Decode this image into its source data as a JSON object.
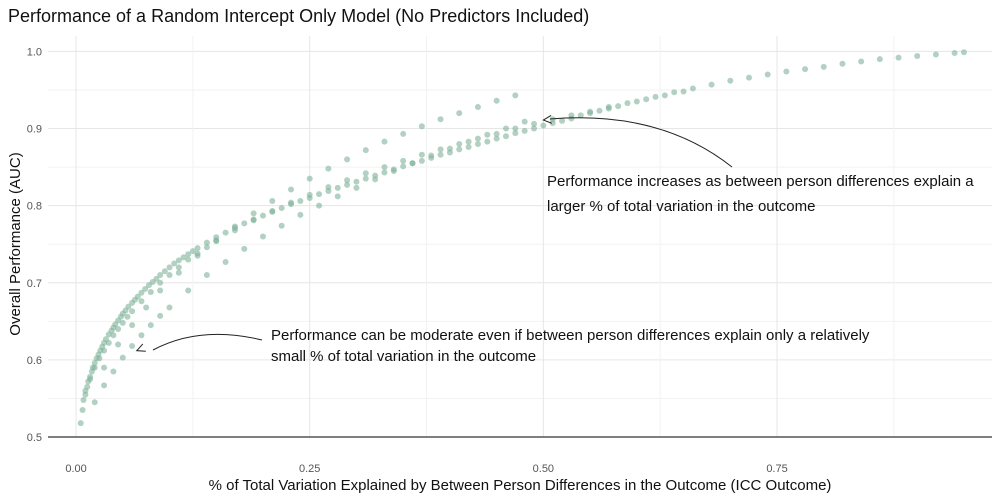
{
  "chart_data": {
    "type": "scatter",
    "title": "Performance of a Random Intercept Only Model (No Predictors Included)",
    "xlabel": "% of Total Variation Explained by Between Person Differences in the Outcome (ICC Outcome)",
    "ylabel": "Overall Performance (AUC)",
    "xlim": [
      -0.03,
      0.98
    ],
    "ylim": [
      0.5,
      1.02
    ],
    "x_ticks": [
      0.0,
      0.25,
      0.5,
      0.75
    ],
    "x_tick_labels": [
      "0.00",
      "0.25",
      "0.50",
      "0.75"
    ],
    "y_ticks": [
      0.5,
      0.6,
      0.7,
      0.8,
      0.9,
      1.0
    ],
    "y_tick_labels": [
      "0.5",
      "0.6",
      "0.7",
      "0.8",
      "0.9",
      "1.0"
    ],
    "grid": true,
    "legend": "none",
    "point_color": "#7fb39a",
    "reference_line_y": 0.5,
    "series": [
      {
        "x": [
          0.005,
          0.007,
          0.008,
          0.01,
          0.012,
          0.013,
          0.015,
          0.017,
          0.018,
          0.02,
          0.022,
          0.024,
          0.026,
          0.028,
          0.03,
          0.032,
          0.035,
          0.038,
          0.04,
          0.042,
          0.045,
          0.048,
          0.05,
          0.053,
          0.056,
          0.06,
          0.063,
          0.066,
          0.07,
          0.074,
          0.078,
          0.082,
          0.086,
          0.09,
          0.095,
          0.1,
          0.105,
          0.11,
          0.115,
          0.12,
          0.125,
          0.13,
          0.14,
          0.15,
          0.16,
          0.17,
          0.18,
          0.19,
          0.2,
          0.21,
          0.22,
          0.23,
          0.24,
          0.25,
          0.26,
          0.27,
          0.28,
          0.29,
          0.3,
          0.31,
          0.32,
          0.33,
          0.34,
          0.35,
          0.36,
          0.37,
          0.38,
          0.39,
          0.4,
          0.41,
          0.42,
          0.43,
          0.44,
          0.45,
          0.46,
          0.47,
          0.48,
          0.49,
          0.5,
          0.51,
          0.52,
          0.53,
          0.54,
          0.55,
          0.56,
          0.57,
          0.58,
          0.6,
          0.62,
          0.64,
          0.66,
          0.68,
          0.7,
          0.72,
          0.74,
          0.76,
          0.78,
          0.8,
          0.82,
          0.84,
          0.86,
          0.88,
          0.9,
          0.92,
          0.94,
          0.95,
          0.01,
          0.015,
          0.02,
          0.025,
          0.03,
          0.035,
          0.04,
          0.045,
          0.05,
          0.055,
          0.06,
          0.07,
          0.08,
          0.09,
          0.1,
          0.11,
          0.12,
          0.13,
          0.14,
          0.15,
          0.17,
          0.19,
          0.21,
          0.23,
          0.25,
          0.27,
          0.29,
          0.31,
          0.33,
          0.35,
          0.37,
          0.39,
          0.41,
          0.43,
          0.45,
          0.47,
          0.49,
          0.51,
          0.53,
          0.55,
          0.57,
          0.59,
          0.61,
          0.63,
          0.65,
          0.02,
          0.03,
          0.04,
          0.05,
          0.06,
          0.07,
          0.08,
          0.09,
          0.1,
          0.12,
          0.14,
          0.16,
          0.18,
          0.2,
          0.22,
          0.24,
          0.26,
          0.28,
          0.3,
          0.32,
          0.34,
          0.36,
          0.38,
          0.4,
          0.42,
          0.44,
          0.46,
          0.48,
          0.03,
          0.045,
          0.06,
          0.075,
          0.09,
          0.11,
          0.13,
          0.15,
          0.17,
          0.19,
          0.21,
          0.23,
          0.25,
          0.27,
          0.29,
          0.31,
          0.33,
          0.35,
          0.37,
          0.39,
          0.41,
          0.43,
          0.45,
          0.47
        ],
        "y": [
          0.518,
          0.535,
          0.548,
          0.555,
          0.565,
          0.572,
          0.578,
          0.585,
          0.59,
          0.596,
          0.602,
          0.607,
          0.612,
          0.617,
          0.622,
          0.627,
          0.633,
          0.638,
          0.642,
          0.646,
          0.651,
          0.656,
          0.66,
          0.664,
          0.669,
          0.674,
          0.678,
          0.682,
          0.687,
          0.692,
          0.697,
          0.701,
          0.705,
          0.71,
          0.715,
          0.72,
          0.725,
          0.729,
          0.733,
          0.737,
          0.741,
          0.745,
          0.752,
          0.759,
          0.765,
          0.771,
          0.777,
          0.782,
          0.787,
          0.792,
          0.797,
          0.802,
          0.806,
          0.81,
          0.815,
          0.819,
          0.823,
          0.827,
          0.831,
          0.835,
          0.839,
          0.843,
          0.847,
          0.851,
          0.855,
          0.858,
          0.862,
          0.866,
          0.869,
          0.873,
          0.876,
          0.88,
          0.883,
          0.887,
          0.89,
          0.894,
          0.897,
          0.9,
          0.904,
          0.907,
          0.91,
          0.913,
          0.917,
          0.92,
          0.923,
          0.926,
          0.929,
          0.935,
          0.941,
          0.947,
          0.952,
          0.957,
          0.962,
          0.966,
          0.97,
          0.974,
          0.977,
          0.98,
          0.984,
          0.987,
          0.99,
          0.992,
          0.994,
          0.996,
          0.998,
          0.999,
          0.56,
          0.575,
          0.59,
          0.602,
          0.612,
          0.622,
          0.632,
          0.64,
          0.648,
          0.656,
          0.663,
          0.676,
          0.688,
          0.7,
          0.71,
          0.72,
          0.73,
          0.738,
          0.746,
          0.754,
          0.768,
          0.781,
          0.793,
          0.804,
          0.814,
          0.824,
          0.833,
          0.842,
          0.85,
          0.858,
          0.866,
          0.873,
          0.88,
          0.887,
          0.893,
          0.9,
          0.906,
          0.912,
          0.917,
          0.922,
          0.928,
          0.933,
          0.938,
          0.943,
          0.948,
          0.545,
          0.567,
          0.585,
          0.603,
          0.618,
          0.632,
          0.645,
          0.657,
          0.668,
          0.69,
          0.71,
          0.727,
          0.744,
          0.76,
          0.774,
          0.788,
          0.8,
          0.812,
          0.823,
          0.834,
          0.845,
          0.855,
          0.865,
          0.874,
          0.883,
          0.892,
          0.9,
          0.909,
          0.59,
          0.62,
          0.645,
          0.668,
          0.69,
          0.713,
          0.735,
          0.755,
          0.773,
          0.79,
          0.806,
          0.821,
          0.835,
          0.848,
          0.86,
          0.872,
          0.883,
          0.893,
          0.903,
          0.912,
          0.92,
          0.928,
          0.936,
          0.943
        ]
      }
    ],
    "annotations": [
      {
        "lines": [
          "Performance increases as between person differences explain a",
          "larger % of total variation in the outcome"
        ],
        "arrow_to": [
          0.5,
          0.911
        ]
      },
      {
        "lines": [
          "Performance can be moderate even if between person differences explain only a relatively",
          "small % of total variation in the outcome"
        ],
        "arrow_to": [
          0.065,
          0.612
        ]
      }
    ]
  }
}
